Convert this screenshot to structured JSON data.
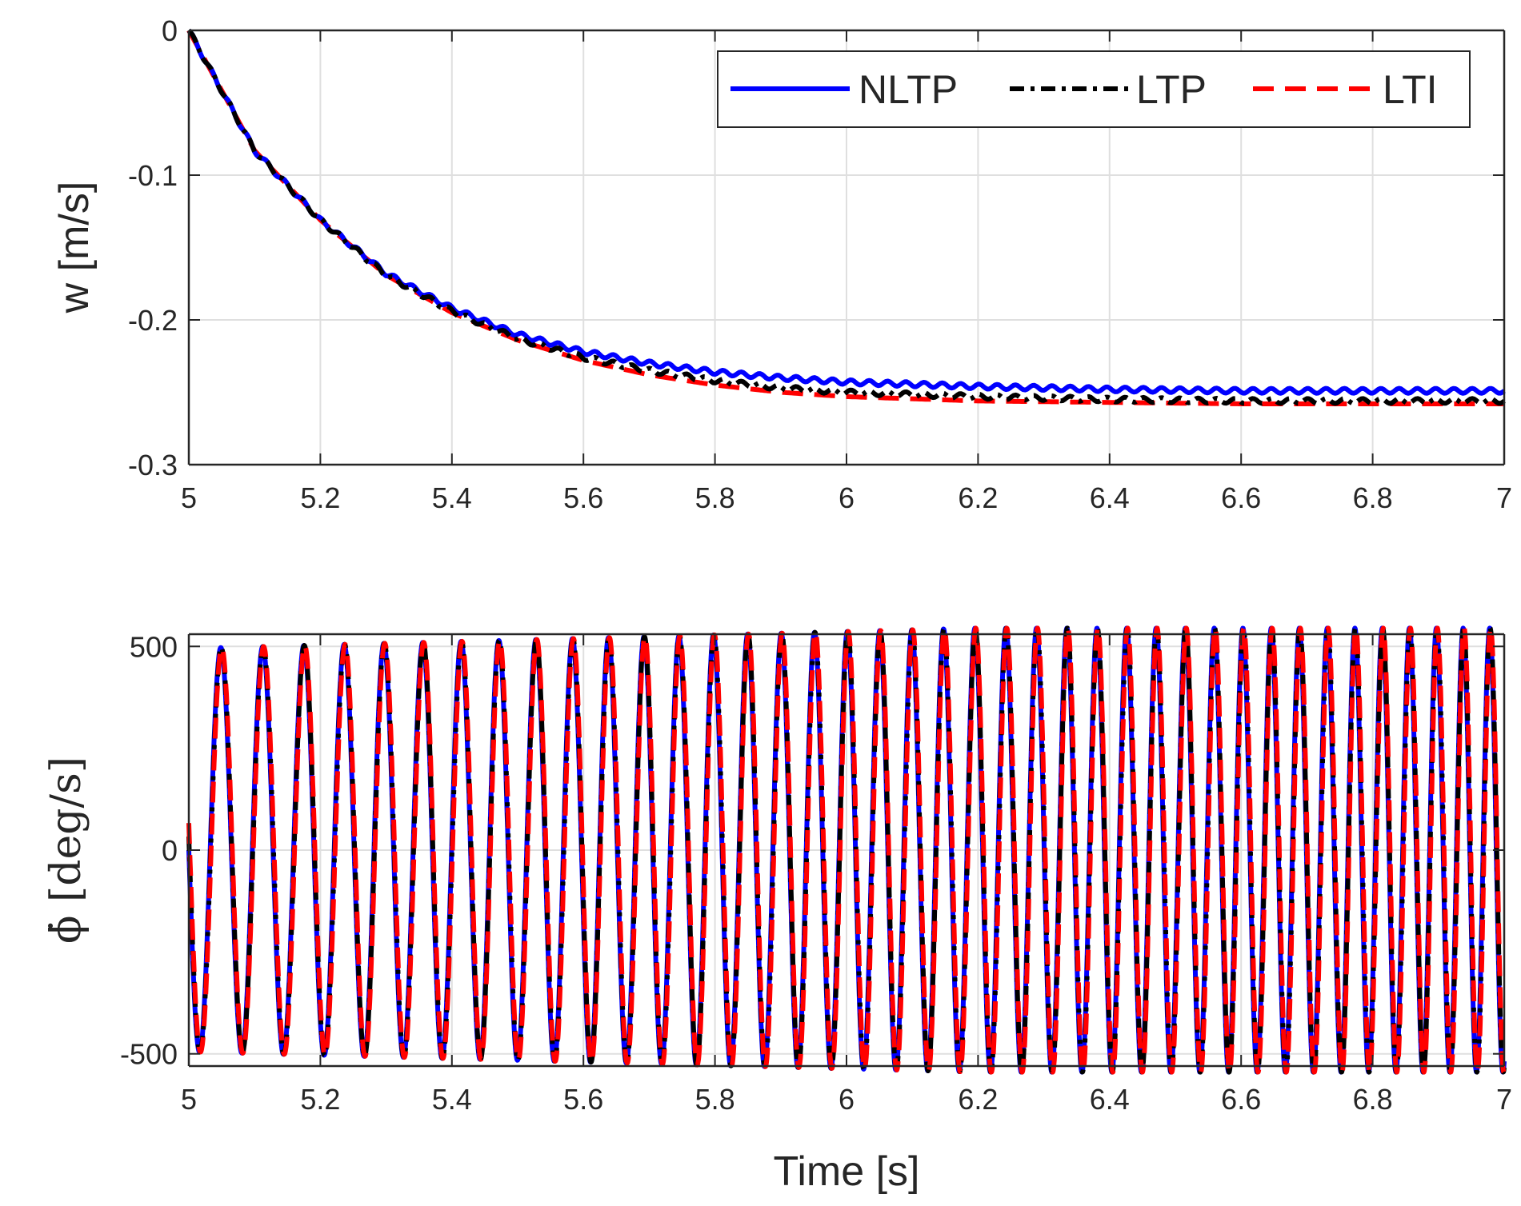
{
  "chart_data": [
    {
      "type": "line",
      "id": "top",
      "ylabel": "w [m/s]",
      "xlabel": "",
      "xlim": [
        5,
        7
      ],
      "ylim": [
        -0.3,
        0
      ],
      "grid": true,
      "legend": {
        "placement": "top-right",
        "orientation": "horizontal"
      },
      "xticks": [
        5,
        5.2,
        5.4,
        5.6,
        5.8,
        6,
        6.2,
        6.4,
        6.6,
        6.8,
        7
      ],
      "xtick_labels": [
        "5",
        "5.2",
        "5.4",
        "5.6",
        "5.8",
        "6",
        "6.2",
        "6.4",
        "6.6",
        "6.8",
        "7"
      ],
      "yticks": [
        0,
        -0.1,
        -0.2,
        -0.3
      ],
      "ytick_labels": [
        "0",
        "-0.1",
        "-0.2",
        "-0.3"
      ],
      "series": [
        {
          "name": "NLTP",
          "color": "#0000ff",
          "style": "solid",
          "x": [
            5.0,
            5.1,
            5.2,
            5.3,
            5.4,
            5.5,
            5.6,
            5.7,
            5.8,
            5.9,
            6.0,
            6.2,
            6.4,
            6.6,
            6.8,
            7.0
          ],
          "y": [
            0.0,
            -0.083,
            -0.131,
            -0.168,
            -0.192,
            -0.21,
            -0.222,
            -0.23,
            -0.236,
            -0.24,
            -0.243,
            -0.246,
            -0.248,
            -0.249,
            -0.249,
            -0.249
          ]
        },
        {
          "name": "LTP",
          "color": "#000000",
          "style": "dashdot",
          "x": [
            5.0,
            5.1,
            5.2,
            5.3,
            5.4,
            5.5,
            5.6,
            5.7,
            5.8,
            5.9,
            6.0,
            6.2,
            6.4,
            6.6,
            6.8,
            7.0
          ],
          "y": [
            0.0,
            -0.083,
            -0.131,
            -0.169,
            -0.194,
            -0.213,
            -0.226,
            -0.235,
            -0.242,
            -0.247,
            -0.25,
            -0.253,
            -0.255,
            -0.256,
            -0.256,
            -0.256
          ]
        },
        {
          "name": "LTI",
          "color": "#ff0000",
          "style": "dashed",
          "x": [
            5.0,
            5.1,
            5.2,
            5.3,
            5.4,
            5.5,
            5.6,
            5.7,
            5.8,
            5.9,
            6.0,
            6.2,
            6.4,
            6.6,
            6.8,
            7.0
          ],
          "y": [
            0.0,
            -0.083,
            -0.131,
            -0.169,
            -0.195,
            -0.214,
            -0.228,
            -0.238,
            -0.245,
            -0.25,
            -0.253,
            -0.256,
            -0.257,
            -0.258,
            -0.258,
            -0.258
          ]
        }
      ]
    },
    {
      "type": "line",
      "id": "bottom",
      "ylabel": "ϕ̇ [deg/s]",
      "xlabel": "Time [s]",
      "xlim": [
        5,
        7
      ],
      "ylim": [
        -530,
        530
      ],
      "grid": true,
      "xticks": [
        5,
        5.2,
        5.4,
        5.6,
        5.8,
        6,
        6.2,
        6.4,
        6.6,
        6.8,
        7
      ],
      "xtick_labels": [
        "5",
        "5.2",
        "5.4",
        "5.6",
        "5.8",
        "6",
        "6.2",
        "6.4",
        "6.6",
        "6.8",
        "7"
      ],
      "yticks": [
        500,
        0,
        -500
      ],
      "ytick_labels": [
        "500",
        "0",
        "-500"
      ],
      "signal": {
        "description": "sinusoidal oscillation starting at 0, first swing negative",
        "amplitude_start": 495,
        "amplitude_end": 545,
        "frequency_start_hz": 15.3,
        "frequency_end_hz": 25.0
      },
      "series": [
        {
          "name": "NLTP",
          "color": "#0000ff",
          "style": "solid"
        },
        {
          "name": "LTP",
          "color": "#000000",
          "style": "dashdot"
        },
        {
          "name": "LTI",
          "color": "#ff0000",
          "style": "dashed"
        }
      ]
    }
  ]
}
